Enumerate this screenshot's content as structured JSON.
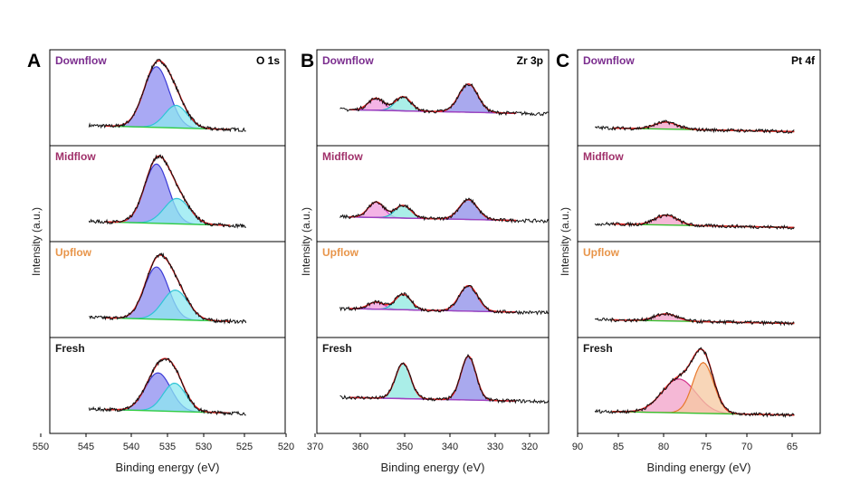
{
  "panel_letters": [
    "A",
    "B",
    "C"
  ],
  "panels": [
    {
      "core_level": "O 1s",
      "ylabel": "Intensity (a.u.)",
      "xlabel": "Binding energy (eV)",
      "x_ticks": [
        "550",
        "545",
        "540",
        "535",
        "530",
        "525",
        "520"
      ],
      "stack": [
        {
          "label": "Downflow",
          "color": "#7b2d8e"
        },
        {
          "label": "Midflow",
          "color": "#a0306a"
        },
        {
          "label": "Upflow",
          "color": "#e8954a"
        },
        {
          "label": "Fresh",
          "color": "#1a1a1a"
        }
      ]
    },
    {
      "core_level": "Zr 3p",
      "ylabel": "Intensity (a.u.)",
      "xlabel": "Binding energy (eV)",
      "x_ticks": [
        "370",
        "360",
        "350",
        "340",
        "330",
        "320"
      ],
      "stack": [
        {
          "label": "Downflow",
          "color": "#7b2d8e"
        },
        {
          "label": "Midflow",
          "color": "#a0306a"
        },
        {
          "label": "Upflow",
          "color": "#e8954a"
        },
        {
          "label": "Fresh",
          "color": "#1a1a1a"
        }
      ]
    },
    {
      "core_level": "Pt 4f",
      "ylabel": "Intensity (a.u.)",
      "xlabel": "Binding energy (eV)",
      "x_ticks": [
        "90",
        "85",
        "80",
        "75",
        "70",
        "65"
      ],
      "stack": [
        {
          "label": "Downflow",
          "color": "#7b2d8e"
        },
        {
          "label": "Midflow",
          "color": "#a0306a"
        },
        {
          "label": "Upflow",
          "color": "#e8954a"
        },
        {
          "label": "Fresh",
          "color": "#1a1a1a"
        }
      ]
    }
  ],
  "chart_data": [
    {
      "type": "line",
      "title": "O 1s",
      "xlabel": "Binding energy (eV)",
      "ylabel": "Intensity (a.u.)",
      "xlim": [
        550,
        520
      ],
      "x_reversed": true,
      "data_window": [
        545,
        525
      ],
      "fit_window": [
        543,
        527
      ],
      "samples": [
        "Downflow",
        "Midflow",
        "Upflow",
        "Fresh"
      ],
      "components": [
        {
          "color": "#3b3bd6",
          "fill": "#8c8cf0"
        },
        {
          "color": "#2ec4d6",
          "fill": "#8ee8f0"
        }
      ],
      "envelope_color": "#e02020",
      "baseline_color": "#2ecc40",
      "spectra": [
        {
          "sample": "Downflow",
          "baseline": 0.05,
          "peaks": [
            {
              "center": 536.4,
              "fwhm": 3.8,
              "height": 0.86
            },
            {
              "center": 533.9,
              "fwhm": 3.4,
              "height": 0.32
            }
          ]
        },
        {
          "sample": "Midflow",
          "baseline": 0.05,
          "peaks": [
            {
              "center": 536.4,
              "fwhm": 3.6,
              "height": 0.84
            },
            {
              "center": 533.8,
              "fwhm": 3.8,
              "height": 0.36
            }
          ]
        },
        {
          "sample": "Upflow",
          "baseline": 0.05,
          "peaks": [
            {
              "center": 536.4,
              "fwhm": 3.6,
              "height": 0.74
            },
            {
              "center": 534.0,
              "fwhm": 3.8,
              "height": 0.42
            }
          ]
        },
        {
          "sample": "Fresh",
          "baseline": 0.11,
          "peaks": [
            {
              "center": 536.2,
              "fwhm": 3.8,
              "height": 0.54
            },
            {
              "center": 534.1,
              "fwhm": 3.4,
              "height": 0.4
            }
          ]
        }
      ]
    },
    {
      "type": "line",
      "title": "Zr 3p",
      "xlabel": "Binding energy (eV)",
      "ylabel": "Intensity (a.u.)",
      "xlim": [
        370,
        320
      ],
      "x_reversed": true,
      "data_window": [
        365,
        320
      ],
      "fit_window": [
        363,
        327
      ],
      "samples": [
        "Downflow",
        "Midflow",
        "Upflow",
        "Fresh"
      ],
      "components": [
        {
          "color": "#cc44cc",
          "fill": "#f09bde"
        },
        {
          "color": "#22b8c8",
          "fill": "#8ee8e0"
        },
        {
          "color": "#3535c0",
          "fill": "#8c8ce8"
        }
      ],
      "envelope_color": "#e02020",
      "baseline_color": "#a040c0",
      "spectra": [
        {
          "sample": "Downflow",
          "baseline": 0.28,
          "peaks": [
            {
              "center": 357.2,
              "fwhm": 4.0,
              "height": 0.17
            },
            {
              "center": 351.4,
              "fwhm": 4.0,
              "height": 0.2
            },
            {
              "center": 337.3,
              "fwhm": 4.8,
              "height": 0.4
            }
          ]
        },
        {
          "sample": "Midflow",
          "baseline": 0.12,
          "peaks": [
            {
              "center": 357.2,
              "fwhm": 4.0,
              "height": 0.22
            },
            {
              "center": 351.4,
              "fwhm": 4.0,
              "height": 0.18
            },
            {
              "center": 337.3,
              "fwhm": 4.6,
              "height": 0.28
            }
          ]
        },
        {
          "sample": "Upflow",
          "baseline": 0.18,
          "peaks": [
            {
              "center": 357.2,
              "fwhm": 4.0,
              "height": 0.1
            },
            {
              "center": 351.4,
              "fwhm": 4.0,
              "height": 0.22
            },
            {
              "center": 337.3,
              "fwhm": 4.6,
              "height": 0.36
            }
          ]
        },
        {
          "sample": "Fresh",
          "baseline": 0.28,
          "peaks": [
            {
              "center": 351.4,
              "fwhm": 3.8,
              "height": 0.5
            },
            {
              "center": 337.3,
              "fwhm": 3.8,
              "height": 0.62
            }
          ]
        }
      ]
    },
    {
      "type": "line",
      "title": "Pt 4f",
      "xlabel": "Binding energy (eV)",
      "ylabel": "Intensity (a.u.)",
      "xlim": [
        90,
        62
      ],
      "x_reversed": true,
      "data_window": [
        88,
        65
      ],
      "fit_window": [
        86,
        65
      ],
      "samples": [
        "Downflow",
        "Midflow",
        "Upflow",
        "Fresh"
      ],
      "components": [
        {
          "color": "#d4348c",
          "fill": "#f2a0c8"
        },
        {
          "color": "#e8782c",
          "fill": "#f6c8a0"
        }
      ],
      "envelope_color": "#e02020",
      "baseline_color": "#36c02e",
      "spectra": [
        {
          "sample": "Downflow",
          "baseline": 0.02,
          "peaks": [
            {
              "center": 79.8,
              "fwhm": 3.0,
              "height": 0.1
            }
          ]
        },
        {
          "sample": "Midflow",
          "baseline": 0.02,
          "peaks": [
            {
              "center": 79.8,
              "fwhm": 3.0,
              "height": 0.14
            }
          ]
        },
        {
          "sample": "Upflow",
          "baseline": 0.02,
          "peaks": [
            {
              "center": 79.8,
              "fwhm": 3.0,
              "height": 0.1
            }
          ]
        },
        {
          "sample": "Fresh",
          "baseline": 0.08,
          "peaks": [
            {
              "center": 78.3,
              "fwhm": 4.6,
              "height": 0.48
            },
            {
              "center": 75.5,
              "fwhm": 2.8,
              "height": 0.72
            }
          ]
        }
      ]
    }
  ]
}
